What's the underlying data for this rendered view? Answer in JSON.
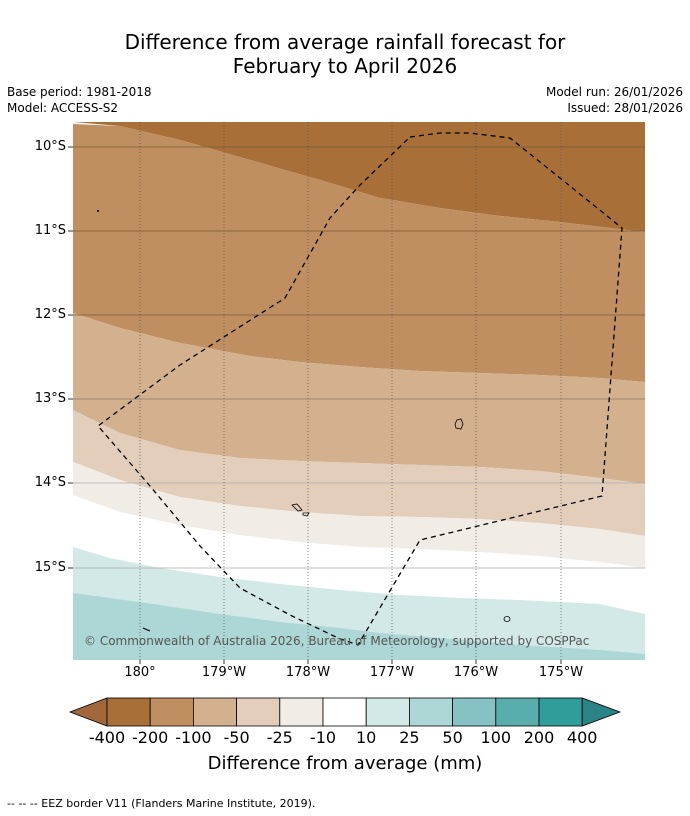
{
  "title_line1": "Difference from average rainfall forecast for",
  "title_line2": "February to April 2026",
  "base_period": "Base period: 1981-2018",
  "model": "Model: ACCESS-S2",
  "model_run": "Model run: 26/01/2026",
  "issued": "Issued: 28/01/2026",
  "copyright": "© Commonwealth of Australia 2026, Bureau of Meteorology, supported by COSPPac",
  "lat_labels": [
    "10°S",
    "11°S",
    "12°S",
    "13°S",
    "14°S",
    "15°S"
  ],
  "lon_labels": [
    "180°",
    "179°W",
    "178°W",
    "177°W",
    "176°W",
    "175°W"
  ],
  "colorbar": {
    "title": "Difference from average (mm)",
    "labels": [
      "-400",
      "-200",
      "-100",
      "-50",
      "-25",
      "-10",
      "10",
      "25",
      "50",
      "100",
      "200",
      "400"
    ],
    "colors": [
      "#a87038",
      "#bf8f61",
      "#d3b08e",
      "#e3cebc",
      "#f2ece6",
      "#ffffff",
      "#d3e9e8",
      "#add6d6",
      "#86c2c3",
      "#5aadad",
      "#319d9b",
      "#2b8383"
    ],
    "low_extend_color": "#a0683a",
    "high_extend_color": "#2b8383"
  },
  "footer": "-- -- -- EEZ border V11 (Flanders Marine Institute, 2019)."
}
